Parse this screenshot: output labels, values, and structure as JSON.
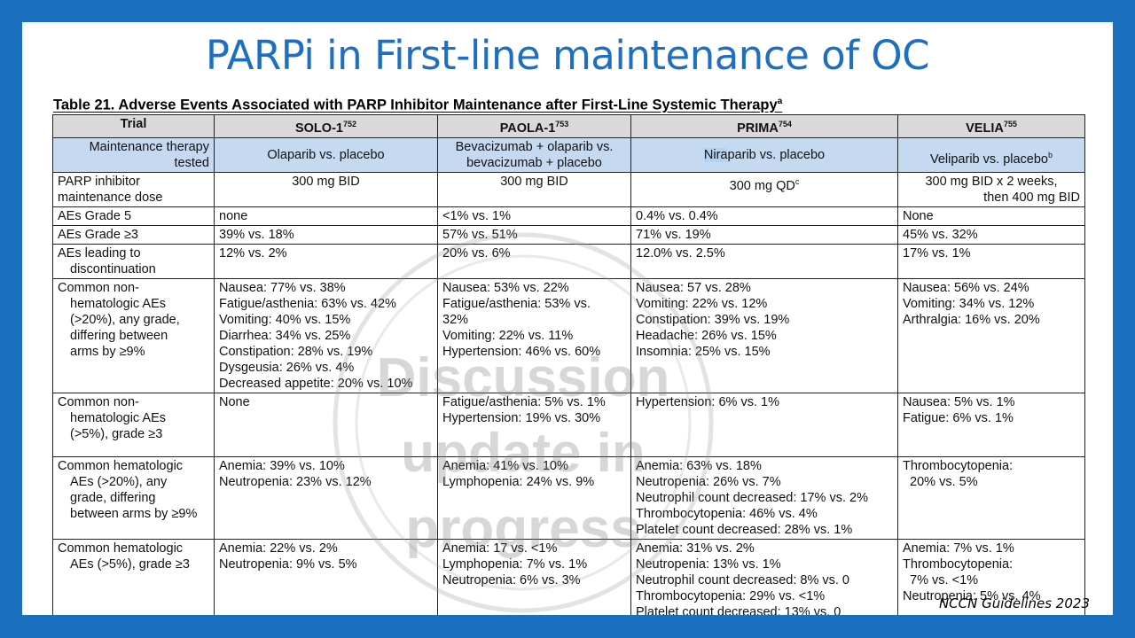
{
  "slide_title": "PARPi in First-line maintenance of OC",
  "table_caption": "Table 21. Adverse Events Associated with PARP Inhibitor Maintenance after First-Line Systemic Therapy",
  "table_caption_sup": "a",
  "headers": {
    "trial": "Trial",
    "solo": "SOLO-1",
    "solo_ref": "752",
    "paola": "PAOLA-1",
    "paola_ref": "753",
    "prima": "PRIMA",
    "prima_ref": "754",
    "velia": "VELIA",
    "velia_ref": "755"
  },
  "therapy_row": {
    "label_lines": [
      "Maintenance therapy",
      "tested"
    ],
    "solo": [
      "Olaparib vs. placebo"
    ],
    "paola": [
      "Bevacizumab + olaparib vs.",
      "bevacizumab + placebo"
    ],
    "prima_hl": "Nira",
    "prima_rest": "parib vs. placebo",
    "velia": "Veliparib vs. placebo",
    "velia_sup": "b"
  },
  "dose_row": {
    "label_lines": [
      "PARP inhibitor",
      "maintenance dose"
    ],
    "solo": "300 mg BID",
    "paola": "300 mg BID",
    "prima": "300 mg QD",
    "prima_sup": "c",
    "velia": [
      "300 mg BID x 2 weeks,",
      "then 400 mg BID"
    ]
  },
  "rows": [
    {
      "label": [
        "AEs Grade 5"
      ],
      "solo": [
        "none"
      ],
      "paola": [
        "<1% vs. 1%"
      ],
      "prima": [
        "0.4% vs. 0.4%"
      ],
      "velia": [
        "None"
      ]
    },
    {
      "label": [
        "AEs Grade ≥3"
      ],
      "solo": [
        "39% vs. 18%"
      ],
      "paola": [
        "57% vs. 51%"
      ],
      "prima": [
        "71% vs. 19%"
      ],
      "velia": [
        "45% vs. 32%"
      ]
    },
    {
      "label": [
        "AEs leading to",
        "discontinuation"
      ],
      "solo": [
        "12% vs. 2%"
      ],
      "paola": [
        "20% vs. 6%"
      ],
      "prima": [
        "12.0% vs. 2.5%"
      ],
      "velia": [
        "17% vs. 1%"
      ]
    },
    {
      "label": [
        "Common non-",
        "hematologic AEs",
        "(>20%), any grade,",
        "differing between",
        "arms by ≥9%"
      ],
      "solo": [
        "Nausea: 77% vs. 38%",
        "Fatigue/asthenia: 63% vs. 42%",
        "Vomiting: 40% vs. 15%",
        "Diarrhea: 34% vs. 25%",
        "Constipation: 28% vs. 19%",
        "Dysgeusia: 26% vs. 4%",
        "Decreased appetite: 20% vs. 10%"
      ],
      "paola": [
        "Nausea: 53% vs. 22%",
        "Fatigue/asthenia: 53% vs.",
        "32%",
        "Vomiting: 22% vs. 11%",
        "Hypertension: 46% vs. 60%"
      ],
      "prima": [
        "Nausea: 57 vs. 28%",
        "Vomiting: 22% vs. 12%",
        "Constipation: 39% vs. 19%",
        "Headache: 26% vs. 15%",
        "Insomnia: 25% vs. 15%"
      ],
      "velia": [
        "Nausea: 56% vs. 24%",
        "Vomiting: 34% vs. 12%",
        "Arthralgia: 16% vs. 20%"
      ]
    },
    {
      "label": [
        "Common non-",
        "hematologic AEs",
        "(>5%), grade ≥3"
      ],
      "solo": [
        "None"
      ],
      "paola": [
        "Fatigue/asthenia: 5% vs. 1%",
        "Hypertension: 19% vs. 30%"
      ],
      "prima": [
        "Hypertension: 6% vs. 1%"
      ],
      "velia": [
        "Nausea: 5% vs. 1%",
        "Fatigue: 6% vs. 1%"
      ]
    },
    {
      "label": [
        "Common hematologic",
        "AEs (>20%), any",
        "grade, differing",
        "between arms by ≥9%"
      ],
      "solo": [
        "Anemia: 39% vs. 10%",
        "Neutropenia: 23% vs. 12%"
      ],
      "paola": [
        "Anemia: 41% vs. 10%",
        "Lymphopenia: 24% vs. 9%"
      ],
      "prima": [
        "Anemia: 63% vs. 18%",
        "Neutropenia: 26% vs. 7%",
        "Neutrophil count decreased: 17% vs. 2%",
        "Thrombocytopenia: 46% vs. 4%",
        "Platelet count decreased: 28% vs. 1%"
      ],
      "velia": [
        "Thrombocytopenia:",
        "  20% vs. 5%"
      ]
    },
    {
      "label": [
        "Common hematologic",
        "AEs (>5%), grade ≥3"
      ],
      "solo": [
        "Anemia: 22% vs. 2%",
        "Neutropenia: 9% vs. 5%"
      ],
      "paola": [
        "Anemia: 17 vs. <1%",
        "Lymphopenia: 7% vs. 1%",
        "Neutropenia: 6% vs. 3%"
      ],
      "prima": [
        "Anemia: 31% vs. 2%",
        "Neutropenia: 13% vs. 1%",
        "Neutrophil count decreased: 8% vs. 0",
        "Thrombocytopenia: 29% vs. <1%",
        "Platelet count decreased: 13% vs. 0"
      ],
      "velia": [
        "Anemia: 7% vs. 1%",
        "Thrombocytopenia:",
        "  7% vs. <1%",
        "Neutropenia: 5% vs. 4%"
      ]
    }
  ],
  "watermark_lines": [
    "Discussion",
    "update in",
    "progress"
  ],
  "footer": "NCCN Guidelines 2023"
}
